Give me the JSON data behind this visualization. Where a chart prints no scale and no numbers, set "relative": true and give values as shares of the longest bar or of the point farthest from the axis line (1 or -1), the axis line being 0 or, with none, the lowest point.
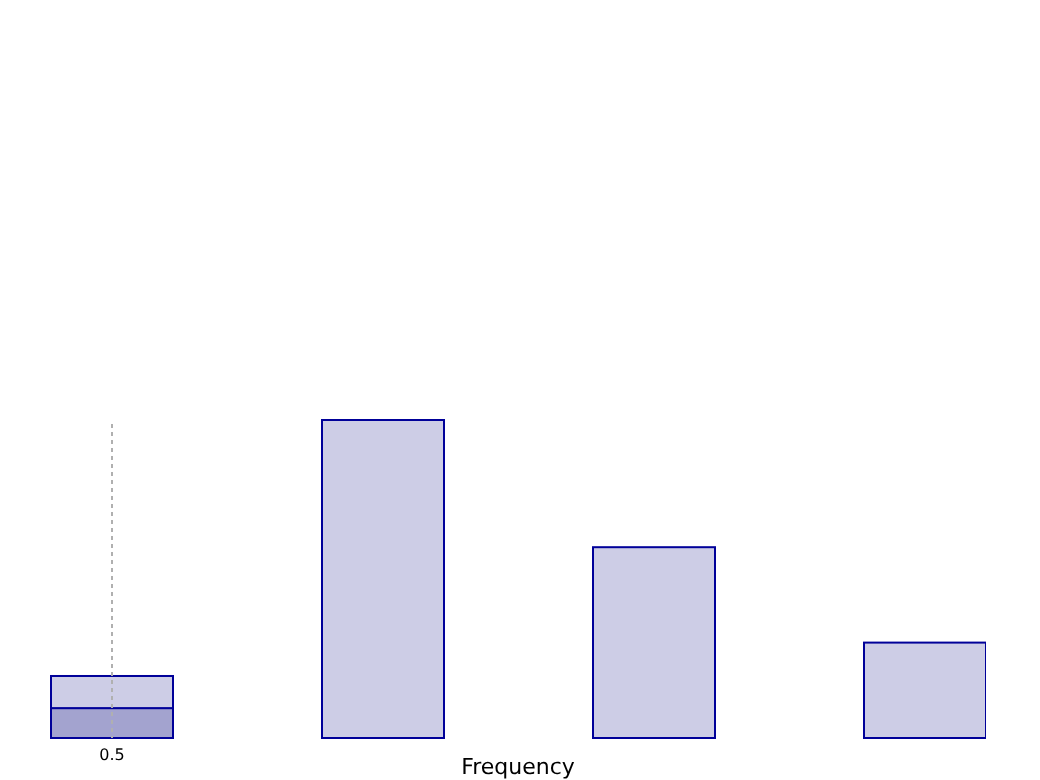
{
  "chart_data": {
    "type": "bar",
    "relative": true,
    "stacked": true,
    "xlabel": "Frequency",
    "categories": [
      "0.5",
      null,
      null,
      null
    ],
    "series": [
      {
        "color": "#a3a3cf",
        "values": [
          0.094,
          0,
          0,
          0
        ]
      },
      {
        "color": "#cdcde6",
        "values": [
          0.101,
          1,
          0.6,
          0.3
        ]
      }
    ],
    "ref_lines": [
      {
        "axis": "x",
        "value": "0.5",
        "color": "#b0b0b0",
        "line_style": "dotted"
      }
    ]
  }
}
